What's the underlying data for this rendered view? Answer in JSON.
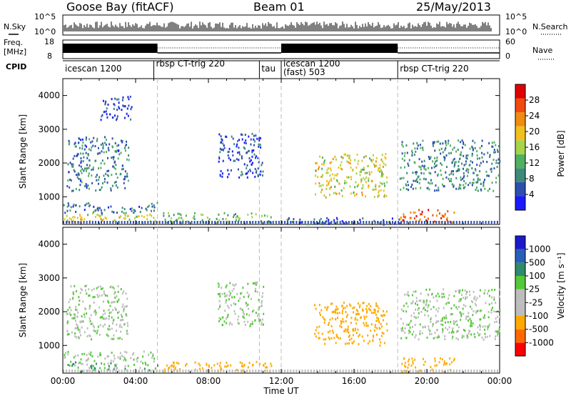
{
  "header": {
    "station": "Goose Bay (fitACF)",
    "beam": "Beam 01",
    "date": "25/May/2013"
  },
  "top_panels": {
    "nsky_label": "N.Sky",
    "nsky_ticks": [
      "10^5",
      "10^0"
    ],
    "nsearch_label": "N.Search",
    "nsearch_ticks": [
      "10^5",
      "10^0"
    ],
    "freq_label": "Freq.",
    "freq_unit": "[MHz]",
    "freq_ticks": [
      "18",
      "8"
    ],
    "nave_label": "Nave",
    "nave_ticks": [
      "60",
      "0"
    ],
    "cpid_label": "CPID",
    "modes": [
      {
        "name": "icescan 1200",
        "start_hour": 0
      },
      {
        "name": "rbsp CT-trig 220",
        "start_hour": 5.0
      },
      {
        "name": "tau",
        "start_hour": 10.8
      },
      {
        "name": "icescan 1200",
        "start_hour": 12.0
      },
      {
        "name": "(fast) 503",
        "start_hour": 12.0
      },
      {
        "name": "rbsp CT-trig 220",
        "start_hour": 18.4
      }
    ]
  },
  "colors": {
    "power": [
      "#1a1aff",
      "#2d4fb0",
      "#3e8a7a",
      "#50b060",
      "#a6d44a",
      "#f0c020",
      "#f08c10",
      "#f04a10",
      "#e00000"
    ],
    "velocity": [
      "#ff0000",
      "#ff6a00",
      "#ffaa00",
      "#bdbdbd",
      "#bdbdbd",
      "#55c83a",
      "#2e8a6a",
      "#2a5fb8",
      "#1a1acc"
    ]
  },
  "chart_data": [
    {
      "type": "heatmap",
      "title": "Power",
      "ylabel": "Slant Range [km]",
      "yticks": [
        1000,
        2000,
        3000,
        4000
      ],
      "ylim": [
        180,
        4500
      ],
      "xlim": [
        0,
        24
      ],
      "colorbar": {
        "label": "Power [dB]",
        "ticks": [
          "4",
          "8",
          "12",
          "16",
          "20",
          "24",
          "28"
        ],
        "range": [
          0,
          31
        ]
      },
      "echo_regions": [
        {
          "t0": 0.0,
          "t1": 5.2,
          "r0": 250,
          "r1": 550,
          "value": 18
        },
        {
          "t0": 0.0,
          "t1": 5.2,
          "r0": 550,
          "r1": 850,
          "value": 7
        },
        {
          "t0": 0.2,
          "t1": 3.6,
          "r0": 1200,
          "r1": 2800,
          "value": 8
        },
        {
          "t0": 2.0,
          "t1": 3.8,
          "r0": 3300,
          "r1": 4000,
          "value": 4
        },
        {
          "t0": 5.5,
          "t1": 11.5,
          "r0": 250,
          "r1": 550,
          "value": 12
        },
        {
          "t0": 8.5,
          "t1": 11.0,
          "r0": 1600,
          "r1": 2900,
          "value": 4
        },
        {
          "t0": 12.2,
          "t1": 18.5,
          "r0": 200,
          "r1": 400,
          "value": 6
        },
        {
          "t0": 13.8,
          "t1": 17.8,
          "r0": 1000,
          "r1": 2300,
          "value": 18
        },
        {
          "t0": 18.5,
          "t1": 21.5,
          "r0": 250,
          "r1": 650,
          "value": 26
        },
        {
          "t0": 18.5,
          "t1": 24.0,
          "r0": 1200,
          "r1": 2700,
          "value": 9
        }
      ]
    },
    {
      "type": "heatmap",
      "title": "Velocity",
      "ylabel": "Slant Range [km]",
      "xlabel": "Time UT",
      "xticks": [
        "00:00",
        "04:00",
        "08:00",
        "12:00",
        "16:00",
        "20:00",
        "00:00"
      ],
      "yticks": [
        1000,
        2000,
        3000,
        4000
      ],
      "ylim": [
        180,
        4500
      ],
      "xlim": [
        0,
        24
      ],
      "colorbar": {
        "label": "Velocity [m s⁻¹]",
        "ticks": [
          "-1000",
          "-500",
          "-100",
          "-25",
          "25",
          "100",
          "500",
          "1000"
        ],
        "range": [
          -1200,
          1200
        ]
      },
      "echo_regions": [
        {
          "t0": 0.0,
          "t1": 5.2,
          "r0": 250,
          "r1": 550,
          "value": 60
        },
        {
          "t0": 0.0,
          "t1": 5.2,
          "r0": 550,
          "r1": 850,
          "value": 0
        },
        {
          "t0": 0.2,
          "t1": 3.6,
          "r0": 1200,
          "r1": 2800,
          "value": 0
        },
        {
          "t0": 5.5,
          "t1": 11.5,
          "r0": 250,
          "r1": 550,
          "value": -200
        },
        {
          "t0": 8.5,
          "t1": 11.0,
          "r0": 1600,
          "r1": 2900,
          "value": 0
        },
        {
          "t0": 13.8,
          "t1": 17.8,
          "r0": 1000,
          "r1": 2300,
          "value": -300
        },
        {
          "t0": 18.5,
          "t1": 21.5,
          "r0": 250,
          "r1": 650,
          "value": -250
        },
        {
          "t0": 18.5,
          "t1": 24.0,
          "r0": 1200,
          "r1": 2700,
          "value": 0
        }
      ]
    }
  ]
}
